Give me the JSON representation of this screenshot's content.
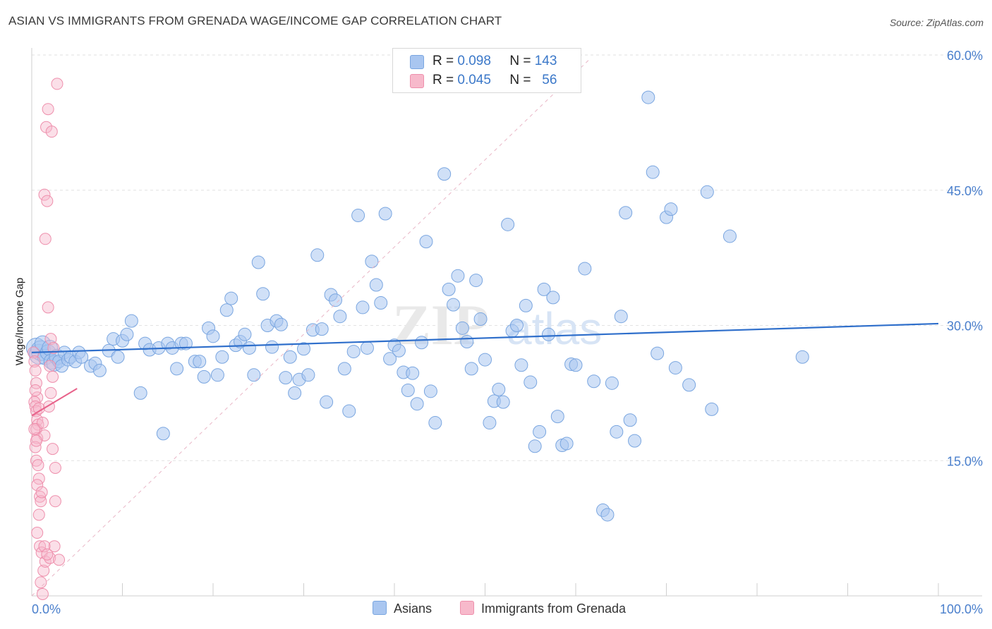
{
  "title": "ASIAN VS IMMIGRANTS FROM GRENADA WAGE/INCOME GAP CORRELATION CHART",
  "source": "Source: ZipAtlas.com",
  "watermark": {
    "zip": "ZIP",
    "atlas": "atlas"
  },
  "legend_top": {
    "rows": [
      {
        "r_label": "R =",
        "r_value": "0.098",
        "n_label": "N =",
        "n_value": "143",
        "color": "#a9c6f0"
      },
      {
        "r_label": "R =",
        "r_value": "0.045",
        "n_label": "N =",
        "n_value": "56",
        "color": "#f7b9cb"
      }
    ]
  },
  "legend_bottom": [
    {
      "label": "Asians",
      "color": "#a9c6f0"
    },
    {
      "label": "Immigrants from Grenada",
      "color": "#f7b9cb"
    }
  ],
  "colors": {
    "blue_fill": "#a9c6f0",
    "blue_stroke": "#7aa6e0",
    "blue_line": "#2f6fcb",
    "pink_fill": "#f7b9cb",
    "pink_stroke": "#ee8fac",
    "pink_line": "#e8628a",
    "grid": "#e2e2e2",
    "tick_label": "#4a7fcc"
  },
  "chart_data": {
    "type": "scatter",
    "title": "ASIAN VS IMMIGRANTS FROM GRENADA WAGE/INCOME GAP CORRELATION CHART",
    "xlabel": "",
    "ylabel": "Wage/Income Gap",
    "xlim": [
      0,
      100
    ],
    "ylim": [
      0,
      60
    ],
    "x_tick_labels": [
      "0.0%",
      "100.0%"
    ],
    "y_ticks": [
      15,
      30,
      45,
      60
    ],
    "y_tick_labels": [
      "15.0%",
      "30.0%",
      "45.0%",
      "60.0%"
    ],
    "grid": true,
    "legend_position": "top-center",
    "series": [
      {
        "name": "Asians",
        "trend": {
          "x": [
            0,
            100
          ],
          "y": [
            27.0,
            30.2
          ]
        },
        "points": [
          [
            0.5,
            27.5
          ],
          [
            0.8,
            26.8
          ],
          [
            1,
            27.2
          ],
          [
            1.2,
            28
          ],
          [
            1.5,
            26.5
          ],
          [
            1.8,
            27
          ],
          [
            2,
            27.5
          ],
          [
            2.2,
            26
          ],
          [
            2.5,
            25.8
          ],
          [
            2.8,
            26.5
          ],
          [
            3,
            26
          ],
          [
            3.3,
            25.5
          ],
          [
            3.6,
            27
          ],
          [
            4,
            26.2
          ],
          [
            4.3,
            26.5
          ],
          [
            4.8,
            26
          ],
          [
            5.2,
            27
          ],
          [
            5.5,
            26.5
          ],
          [
            6.5,
            25.5
          ],
          [
            7,
            25.8
          ],
          [
            7.5,
            25
          ],
          [
            8.5,
            27.2
          ],
          [
            9,
            28.5
          ],
          [
            9.5,
            26.5
          ],
          [
            10,
            28.3
          ],
          [
            10.5,
            29
          ],
          [
            11,
            30.5
          ],
          [
            12,
            22.5
          ],
          [
            12.5,
            28
          ],
          [
            13,
            27.3
          ],
          [
            14,
            27.5
          ],
          [
            14.5,
            18
          ],
          [
            15,
            28
          ],
          [
            15.5,
            27.5
          ],
          [
            16,
            25.2
          ],
          [
            16.5,
            28
          ],
          [
            17,
            28
          ],
          [
            18,
            26
          ],
          [
            18.5,
            26
          ],
          [
            19,
            24.3
          ],
          [
            19.5,
            29.7
          ],
          [
            20,
            28.8
          ],
          [
            20.5,
            24.5
          ],
          [
            21,
            26.5
          ],
          [
            21.5,
            31.7
          ],
          [
            22,
            33
          ],
          [
            22.5,
            27.8
          ],
          [
            23,
            28.2
          ],
          [
            23.5,
            29
          ],
          [
            24,
            27.5
          ],
          [
            24.5,
            24.5
          ],
          [
            25,
            37
          ],
          [
            25.5,
            33.5
          ],
          [
            26,
            30
          ],
          [
            26.5,
            27.6
          ],
          [
            27,
            30.5
          ],
          [
            27.5,
            30.1
          ],
          [
            28,
            24.2
          ],
          [
            28.5,
            26.5
          ],
          [
            29,
            22.5
          ],
          [
            29.5,
            24
          ],
          [
            30,
            27.4
          ],
          [
            30.5,
            24.5
          ],
          [
            31,
            29.5
          ],
          [
            31.5,
            37.8
          ],
          [
            32,
            29.6
          ],
          [
            32.5,
            21.5
          ],
          [
            33,
            33.4
          ],
          [
            33.5,
            32.8
          ],
          [
            34,
            31
          ],
          [
            34.5,
            25.2
          ],
          [
            35,
            20.5
          ],
          [
            35.5,
            27.1
          ],
          [
            36,
            42.2
          ],
          [
            36.5,
            32
          ],
          [
            37,
            27.5
          ],
          [
            37.5,
            37.1
          ],
          [
            38,
            34.5
          ],
          [
            38.5,
            32.5
          ],
          [
            39,
            42.4
          ],
          [
            39.5,
            26.3
          ],
          [
            40,
            27.8
          ],
          [
            40.5,
            27.2
          ],
          [
            41,
            24.8
          ],
          [
            41.5,
            22.8
          ],
          [
            42,
            24.7
          ],
          [
            42.5,
            21.3
          ],
          [
            43,
            28.1
          ],
          [
            43.5,
            39.3
          ],
          [
            44,
            22.7
          ],
          [
            44.5,
            19.2
          ],
          [
            45.5,
            46.8
          ],
          [
            46,
            34
          ],
          [
            46.5,
            32.3
          ],
          [
            47,
            35.5
          ],
          [
            47.5,
            29.7
          ],
          [
            48,
            28.2
          ],
          [
            48.5,
            25.2
          ],
          [
            49,
            35
          ],
          [
            49.5,
            30.7
          ],
          [
            50,
            26.2
          ],
          [
            50.5,
            19.2
          ],
          [
            51,
            21.6
          ],
          [
            51.5,
            22.9
          ],
          [
            52,
            21.5
          ],
          [
            52.5,
            41.2
          ],
          [
            53,
            29.4
          ],
          [
            53.5,
            30
          ],
          [
            54,
            25.6
          ],
          [
            54.5,
            32.2
          ],
          [
            55,
            23.7
          ],
          [
            55.5,
            16.6
          ],
          [
            56,
            18.2
          ],
          [
            56.5,
            34
          ],
          [
            57,
            29
          ],
          [
            57.5,
            33.1
          ],
          [
            58,
            19.9
          ],
          [
            58.5,
            16.7
          ],
          [
            59,
            16.9
          ],
          [
            59.5,
            25.7
          ],
          [
            60,
            25.6
          ],
          [
            61,
            36.3
          ],
          [
            62,
            23.8
          ],
          [
            63,
            9.5
          ],
          [
            63.5,
            9
          ],
          [
            64,
            23.6
          ],
          [
            64.5,
            18.2
          ],
          [
            65,
            31
          ],
          [
            65.5,
            42.5
          ],
          [
            66,
            19.5
          ],
          [
            66.5,
            17.2
          ],
          [
            68,
            55.3
          ],
          [
            68.5,
            47
          ],
          [
            69,
            26.9
          ],
          [
            70,
            42
          ],
          [
            70.5,
            42.9
          ],
          [
            71,
            25.3
          ],
          [
            72.5,
            23.4
          ],
          [
            74.5,
            44.8
          ],
          [
            75,
            20.7
          ],
          [
            77,
            39.9
          ],
          [
            85,
            26.5
          ]
        ]
      },
      {
        "name": "Immigrants from Grenada",
        "trend": {
          "x": [
            0,
            5
          ],
          "y": [
            20.0,
            23.0
          ]
        },
        "points": [
          [
            0.2,
            27
          ],
          [
            0.3,
            26
          ],
          [
            0.4,
            25
          ],
          [
            0.5,
            23.6
          ],
          [
            0.6,
            22
          ],
          [
            0.3,
            21.5
          ],
          [
            0.4,
            21
          ],
          [
            0.5,
            20.5
          ],
          [
            0.6,
            19.5
          ],
          [
            0.7,
            19
          ],
          [
            0.5,
            18.5
          ],
          [
            0.6,
            17.5
          ],
          [
            0.4,
            16.5
          ],
          [
            0.5,
            15
          ],
          [
            0.7,
            14.5
          ],
          [
            0.8,
            13
          ],
          [
            0.6,
            12.3
          ],
          [
            0.9,
            11
          ],
          [
            1,
            10.5
          ],
          [
            0.8,
            9
          ],
          [
            0.6,
            7
          ],
          [
            0.9,
            5.5
          ],
          [
            1.1,
            4.8
          ],
          [
            1.3,
            2.8
          ],
          [
            1.0,
            1.5
          ],
          [
            1.2,
            0.2
          ],
          [
            1.5,
            3.8
          ],
          [
            2,
            4.2
          ],
          [
            2.5,
            5.5
          ],
          [
            3,
            4
          ],
          [
            1.8,
            54
          ],
          [
            1.6,
            52
          ],
          [
            2.2,
            51.5
          ],
          [
            1.4,
            44.5
          ],
          [
            1.7,
            43.8
          ],
          [
            1.5,
            39.6
          ],
          [
            1.8,
            32
          ],
          [
            2.1,
            28.5
          ],
          [
            2.4,
            27.5
          ],
          [
            2.0,
            25.5
          ],
          [
            2.3,
            24.3
          ],
          [
            2.1,
            22.5
          ],
          [
            1.9,
            21
          ],
          [
            1.2,
            19.2
          ],
          [
            1.4,
            17.8
          ],
          [
            2.3,
            16.3
          ],
          [
            2.6,
            14.2
          ],
          [
            1.1,
            11.5
          ],
          [
            2.6,
            10.5
          ],
          [
            0.4,
            22.8
          ],
          [
            0.8,
            20.8
          ],
          [
            0.3,
            18.5
          ],
          [
            0.5,
            17.2
          ],
          [
            1.4,
            5.5
          ],
          [
            1.7,
            4.6
          ],
          [
            2.8,
            56.8
          ]
        ]
      }
    ]
  }
}
